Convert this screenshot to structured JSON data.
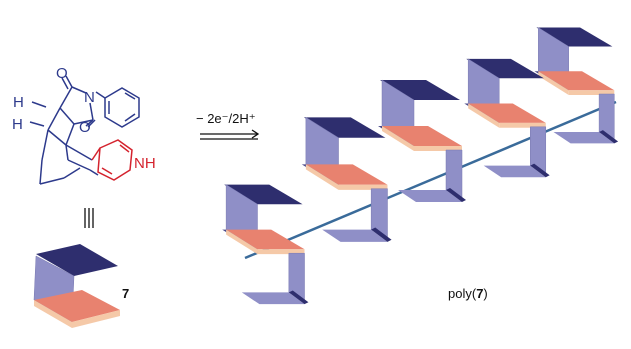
{
  "molecule": {
    "atoms": {
      "O_top": "O",
      "N_imide": "N",
      "O_bottom": "O",
      "H_upper": "H",
      "H_lower": "H",
      "NH": "NH"
    },
    "compound_number": "7"
  },
  "reaction": {
    "conditions": "− 2e⁻/2H⁺"
  },
  "polymer": {
    "label_prefix": "poly(",
    "label_number": "7",
    "label_suffix": ")"
  },
  "colors": {
    "bond_blue": "#2d3a8c",
    "bond_red": "#d4232e",
    "plate_dark": "#2e2e6e",
    "plate_side": "#8f8fc7",
    "plate_salmon": "#e8826f",
    "plate_salmon_edge": "#f5c9a8",
    "backbone": "#3a6b9a"
  }
}
